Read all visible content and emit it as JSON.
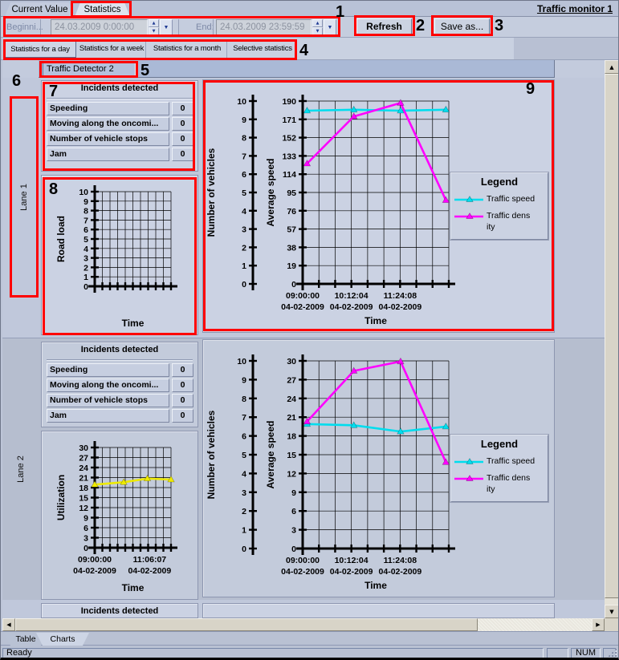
{
  "colors": {
    "annotation": "#ff0000",
    "traffic_speed": "#00ddee",
    "traffic_density": "#ff00ff",
    "utilization": "#eeea00"
  },
  "window": {
    "monitor_link": "Traffic monitor 1"
  },
  "top_tabs": [
    {
      "label": "Current Value"
    },
    {
      "label": "Statistics"
    }
  ],
  "toolbar": {
    "begin_label": "Beginni...",
    "begin_value": "24.03.2009 0:00:00",
    "end_label": "End:",
    "end_value": "24.03.2009 23:59:59",
    "refresh": "Refresh",
    "save_as": "Save as..."
  },
  "subtabs": [
    {
      "label": "Statistics for a day"
    },
    {
      "label": "Statistics for a week"
    },
    {
      "label": "Statistics for a month"
    },
    {
      "label": "Selective statistics"
    }
  ],
  "detector": "Traffic Detector 2",
  "callouts": [
    "1",
    "2",
    "3",
    "4",
    "5",
    "6",
    "7",
    "8",
    "9"
  ],
  "lanes": [
    {
      "name": "Lane 1",
      "incidents": {
        "header": "Incidents detected",
        "rows": [
          {
            "label": "Speeding",
            "value": "0"
          },
          {
            "label": "Moving along the oncomi...",
            "value": "0"
          },
          {
            "label": "Number of vehicle stops",
            "value": "0"
          },
          {
            "label": "Jam",
            "value": "0"
          }
        ]
      }
    },
    {
      "name": "Lane 2",
      "incidents": {
        "header": "Incidents detected",
        "rows": [
          {
            "label": "Speeding",
            "value": "0"
          },
          {
            "label": "Moving along the oncomi...",
            "value": "0"
          },
          {
            "label": "Number of vehicle stops",
            "value": "0"
          },
          {
            "label": "Jam",
            "value": "0"
          }
        ]
      }
    }
  ],
  "lane3_header": "Incidents detected",
  "bottom_tabs": [
    {
      "label": "Table"
    },
    {
      "label": "Charts"
    }
  ],
  "status": {
    "ready": "Ready",
    "num": "NUM"
  },
  "chart_data": [
    {
      "id": "lane1-roadload",
      "type": "line",
      "ylabel": "Road load",
      "ymin": 0,
      "ymax": 10,
      "ystep": 1,
      "xdiv": 10,
      "xlabel": "Time",
      "xlabels": [],
      "series": []
    },
    {
      "id": "lane1-main",
      "type": "line",
      "standalone_axis": {
        "label": "Number of vehicles",
        "min": 0,
        "max": 10,
        "step": 1
      },
      "ylabel": "Average speed",
      "ymin": 0,
      "ymax": 190,
      "ystep": 19,
      "xdiv": 9,
      "xlabel": "Time",
      "xlabels": [
        {
          "pos": 0.0,
          "time": "09:00:00",
          "date": "04-02-2009"
        },
        {
          "pos": 0.333,
          "time": "10:12:04",
          "date": "04-02-2009"
        },
        {
          "pos": 0.667,
          "time": "11:24:08",
          "date": "04-02-2009"
        }
      ],
      "series": [
        {
          "name": "Traffic speed",
          "color": "#00ddee",
          "points": [
            [
              0.03,
              180
            ],
            [
              0.35,
              181
            ],
            [
              0.67,
              180
            ],
            [
              0.98,
              181
            ]
          ]
        },
        {
          "name": "Traffic density",
          "color": "#ff00ff",
          "points": [
            [
              0.03,
              125
            ],
            [
              0.35,
              174
            ],
            [
              0.67,
              188
            ],
            [
              0.98,
              87
            ]
          ]
        }
      ],
      "legend": {
        "title": "Legend",
        "entries": [
          {
            "color": "#00ddee",
            "lines": [
              "Traffic speed"
            ]
          },
          {
            "color": "#ff00ff",
            "lines": [
              "Traffic dens",
              "ity"
            ]
          }
        ]
      }
    },
    {
      "id": "lane2-utilization",
      "type": "line",
      "ylabel": "Utilization",
      "ymin": 0,
      "ymax": 30,
      "ystep": 3,
      "xdiv": 10,
      "xlabel": "Time",
      "xlabels": [
        {
          "pos": 0.0,
          "time": "09:00:00",
          "date": "04-02-2009"
        },
        {
          "pos": 0.72,
          "time": "11:06:07",
          "date": "04-02-2009"
        }
      ],
      "series": [
        {
          "name": "Utilization",
          "color": "#eeea00",
          "points": [
            [
              0.0,
              18.9
            ],
            [
              0.38,
              19.6
            ],
            [
              0.69,
              20.7
            ],
            [
              1.0,
              20.4
            ]
          ]
        }
      ]
    },
    {
      "id": "lane2-main",
      "type": "line",
      "standalone_axis": {
        "label": "Number of vehicles",
        "min": 0,
        "max": 10,
        "step": 1
      },
      "ylabel": "Average speed",
      "ymin": 0,
      "ymax": 30,
      "ystep": 3,
      "xdiv": 9,
      "xlabel": "Time",
      "xlabels": [
        {
          "pos": 0.0,
          "time": "09:00:00",
          "date": "04-02-2009"
        },
        {
          "pos": 0.333,
          "time": "10:12:04",
          "date": "04-02-2009"
        },
        {
          "pos": 0.667,
          "time": "11:24:08",
          "date": "04-02-2009"
        }
      ],
      "series": [
        {
          "name": "Traffic speed",
          "color": "#00ddee",
          "points": [
            [
              0.03,
              19.9
            ],
            [
              0.35,
              19.7
            ],
            [
              0.67,
              18.7
            ],
            [
              0.98,
              19.5
            ]
          ]
        },
        {
          "name": "Traffic density",
          "color": "#ff00ff",
          "points": [
            [
              0.03,
              20.3
            ],
            [
              0.35,
              28.4
            ],
            [
              0.67,
              29.9
            ],
            [
              0.98,
              13.8
            ]
          ]
        }
      ],
      "legend": {
        "title": "Legend",
        "entries": [
          {
            "color": "#00ddee",
            "lines": [
              "Traffic speed"
            ]
          },
          {
            "color": "#ff00ff",
            "lines": [
              "Traffic dens",
              "ity"
            ]
          }
        ]
      }
    }
  ]
}
